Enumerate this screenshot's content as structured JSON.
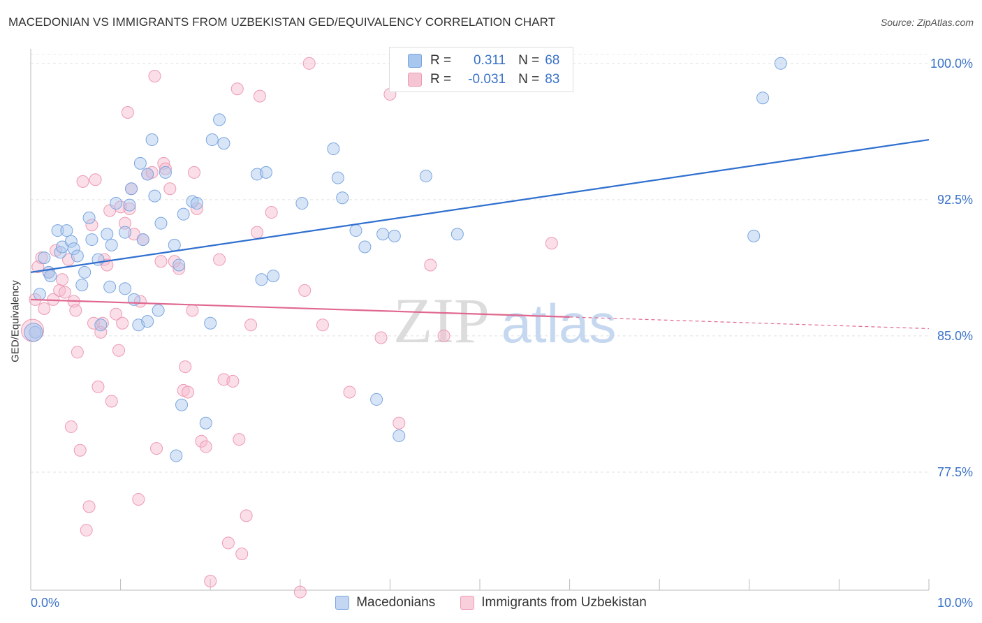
{
  "title": "MACEDONIAN VS IMMIGRANTS FROM UZBEKISTAN GED/EQUIVALENCY CORRELATION CHART",
  "source": "Source: ZipAtlas.com",
  "watermark": {
    "zip": "ZIP",
    "atlas": "atlas"
  },
  "legend": {
    "r_label": "R =",
    "n_label": "N =",
    "series": [
      {
        "r": "0.311",
        "n": "68"
      },
      {
        "r": "-0.031",
        "n": "83"
      }
    ]
  },
  "colors": {
    "blue_fill": "#a9c6ee",
    "blue_stroke": "#7aa6e0",
    "blue_line": "#2f6fcf",
    "pink_fill": "#f6b9cb",
    "pink_stroke": "#ee9ab3",
    "pink_line": "#e0688f",
    "tick_label": "#3a72c8"
  },
  "chart_data": {
    "type": "scatter",
    "title": "MACEDONIAN VS IMMIGRANTS FROM UZBEKISTAN GED/EQUIVALENCY CORRELATION CHART",
    "xlabel": "",
    "ylabel": "GED/Equivalency",
    "xlim": [
      0,
      10
    ],
    "ylim": [
      71.0,
      100.8
    ],
    "x_tick_labels": [
      "0.0%",
      "10.0%"
    ],
    "y_ticks": [
      77.5,
      85.0,
      92.5,
      100.0
    ],
    "y_tick_labels": [
      "77.5%",
      "85.0%",
      "92.5%",
      "100.0%"
    ],
    "grid": true,
    "legend_position": "top-center",
    "series": [
      {
        "name": "Macedonians",
        "r": 0.311,
        "n": 68,
        "trend": {
          "x": [
            0,
            10
          ],
          "y": [
            88.5,
            95.8
          ]
        },
        "points": [
          [
            0.05,
            85.2
          ],
          [
            0.1,
            87.3
          ],
          [
            0.15,
            89.3
          ],
          [
            0.2,
            88.5
          ],
          [
            0.22,
            88.3
          ],
          [
            0.3,
            90.8
          ],
          [
            0.33,
            89.6
          ],
          [
            0.35,
            89.9
          ],
          [
            0.4,
            90.8
          ],
          [
            0.45,
            90.2
          ],
          [
            0.48,
            89.8
          ],
          [
            0.52,
            89.4
          ],
          [
            0.57,
            87.8
          ],
          [
            0.6,
            88.5
          ],
          [
            0.65,
            91.5
          ],
          [
            0.68,
            90.3
          ],
          [
            0.75,
            89.2
          ],
          [
            0.78,
            85.6
          ],
          [
            0.85,
            90.6
          ],
          [
            0.88,
            87.7
          ],
          [
            0.9,
            90.0
          ],
          [
            0.95,
            92.3
          ],
          [
            1.05,
            90.7
          ],
          [
            1.05,
            87.6
          ],
          [
            1.1,
            92.2
          ],
          [
            1.12,
            93.1
          ],
          [
            1.15,
            87.0
          ],
          [
            1.2,
            85.6
          ],
          [
            1.22,
            94.5
          ],
          [
            1.25,
            90.3
          ],
          [
            1.3,
            93.9
          ],
          [
            1.3,
            85.8
          ],
          [
            1.35,
            95.8
          ],
          [
            1.38,
            92.7
          ],
          [
            1.42,
            86.4
          ],
          [
            1.45,
            91.2
          ],
          [
            1.5,
            94.0
          ],
          [
            1.6,
            90.0
          ],
          [
            1.62,
            78.4
          ],
          [
            1.65,
            88.9
          ],
          [
            1.68,
            81.2
          ],
          [
            1.7,
            91.7
          ],
          [
            1.8,
            92.4
          ],
          [
            1.85,
            92.3
          ],
          [
            1.95,
            80.2
          ],
          [
            2.0,
            85.7
          ],
          [
            2.02,
            95.8
          ],
          [
            2.1,
            96.9
          ],
          [
            2.15,
            95.6
          ],
          [
            2.52,
            93.9
          ],
          [
            2.57,
            88.1
          ],
          [
            2.62,
            94.0
          ],
          [
            2.7,
            88.3
          ],
          [
            3.02,
            92.3
          ],
          [
            3.37,
            95.3
          ],
          [
            3.42,
            93.7
          ],
          [
            3.47,
            92.6
          ],
          [
            3.62,
            90.8
          ],
          [
            3.72,
            89.9
          ],
          [
            3.85,
            81.5
          ],
          [
            3.92,
            90.6
          ],
          [
            4.05,
            90.5
          ],
          [
            4.1,
            79.5
          ],
          [
            4.4,
            93.8
          ],
          [
            4.75,
            90.6
          ],
          [
            8.05,
            90.5
          ],
          [
            8.15,
            98.1
          ],
          [
            8.35,
            100.0
          ]
        ]
      },
      {
        "name": "Immigrants from Uzbekistan",
        "r": -0.031,
        "n": 83,
        "trend": {
          "x": [
            0,
            10
          ],
          "y": [
            87.0,
            85.4
          ]
        },
        "trend_solid_until_x": 6.0,
        "points": [
          [
            0.05,
            87.0
          ],
          [
            0.08,
            88.8
          ],
          [
            0.12,
            89.3
          ],
          [
            0.15,
            86.5
          ],
          [
            0.2,
            88.5
          ],
          [
            0.25,
            87.0
          ],
          [
            0.28,
            89.7
          ],
          [
            0.32,
            87.5
          ],
          [
            0.35,
            88.1
          ],
          [
            0.38,
            87.4
          ],
          [
            0.42,
            89.2
          ],
          [
            0.45,
            80.0
          ],
          [
            0.48,
            86.9
          ],
          [
            0.5,
            86.4
          ],
          [
            0.52,
            84.1
          ],
          [
            0.55,
            78.7
          ],
          [
            0.58,
            93.5
          ],
          [
            0.62,
            74.3
          ],
          [
            0.65,
            75.6
          ],
          [
            0.68,
            91.1
          ],
          [
            0.7,
            85.7
          ],
          [
            0.72,
            93.6
          ],
          [
            0.75,
            82.2
          ],
          [
            0.78,
            85.2
          ],
          [
            0.8,
            85.7
          ],
          [
            0.82,
            89.2
          ],
          [
            0.85,
            88.9
          ],
          [
            0.88,
            91.9
          ],
          [
            0.9,
            81.4
          ],
          [
            0.95,
            86.2
          ],
          [
            0.98,
            84.2
          ],
          [
            1.0,
            92.1
          ],
          [
            1.02,
            85.7
          ],
          [
            1.05,
            91.2
          ],
          [
            1.08,
            97.3
          ],
          [
            1.1,
            92.0
          ],
          [
            1.12,
            93.1
          ],
          [
            1.15,
            90.6
          ],
          [
            1.2,
            76.0
          ],
          [
            1.22,
            86.9
          ],
          [
            1.25,
            90.3
          ],
          [
            1.3,
            93.9
          ],
          [
            1.35,
            94.0
          ],
          [
            1.38,
            99.3
          ],
          [
            1.4,
            78.8
          ],
          [
            1.45,
            89.1
          ],
          [
            1.48,
            94.5
          ],
          [
            1.5,
            94.2
          ],
          [
            1.55,
            93.1
          ],
          [
            1.6,
            89.1
          ],
          [
            1.65,
            88.7
          ],
          [
            1.7,
            82.0
          ],
          [
            1.72,
            83.3
          ],
          [
            1.75,
            81.9
          ],
          [
            1.8,
            86.4
          ],
          [
            1.82,
            94.0
          ],
          [
            1.85,
            92.0
          ],
          [
            1.9,
            79.2
          ],
          [
            1.95,
            78.9
          ],
          [
            2.0,
            71.5
          ],
          [
            2.1,
            89.2
          ],
          [
            2.15,
            82.6
          ],
          [
            2.2,
            73.6
          ],
          [
            2.25,
            82.5
          ],
          [
            2.3,
            98.6
          ],
          [
            2.32,
            79.3
          ],
          [
            2.35,
            73.0
          ],
          [
            2.4,
            75.1
          ],
          [
            2.45,
            85.6
          ],
          [
            2.52,
            90.7
          ],
          [
            2.55,
            98.2
          ],
          [
            2.68,
            91.8
          ],
          [
            3.0,
            70.9
          ],
          [
            3.05,
            87.5
          ],
          [
            3.1,
            100.0
          ],
          [
            3.25,
            85.6
          ],
          [
            3.55,
            81.9
          ],
          [
            3.9,
            84.9
          ],
          [
            4.0,
            98.3
          ],
          [
            4.1,
            80.2
          ],
          [
            4.45,
            88.9
          ],
          [
            4.6,
            85.0
          ],
          [
            5.8,
            90.1
          ]
        ]
      }
    ]
  }
}
